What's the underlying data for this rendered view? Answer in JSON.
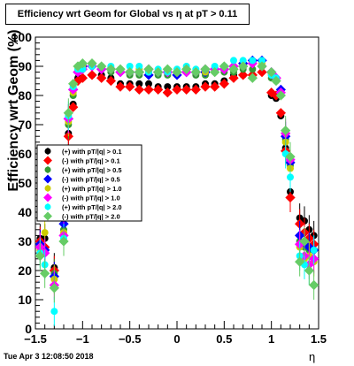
{
  "title": "Efficiency wrt Geom for Global vs   η at pT > 0.11",
  "footer": "Tue Apr  3 12:08:50 2018",
  "chart_data": {
    "type": "scatter",
    "xlabel": "η",
    "ylabel": "Efficiency wrt Geom (%)",
    "xlim": [
      -1.5,
      1.5
    ],
    "ylim": [
      0,
      100
    ],
    "x_ticks": [
      "−1.5",
      "−1",
      "−0.5",
      "0",
      "0.5",
      "1",
      "1.5"
    ],
    "y_ticks": [
      "0",
      "10",
      "20",
      "30",
      "40",
      "50",
      "60",
      "70",
      "80",
      "90",
      "100"
    ],
    "legend_position": "middle-left",
    "series": [
      {
        "name": "(+) with pT/|q| > 0.1",
        "color": "#000000",
        "x": [
          -1.45,
          -1.4,
          -1.3,
          -1.2,
          -1.15,
          -1.1,
          -1.05,
          -1.0,
          -0.9,
          -0.8,
          -0.7,
          -0.6,
          -0.5,
          -0.4,
          -0.3,
          -0.2,
          -0.1,
          0.0,
          0.1,
          0.2,
          0.3,
          0.4,
          0.5,
          0.6,
          0.7,
          0.8,
          0.9,
          1.0,
          1.05,
          1.1,
          1.15,
          1.2,
          1.3,
          1.35,
          1.4,
          1.45
        ],
        "y": [
          31,
          31,
          21,
          38,
          67,
          77,
          86,
          86,
          87,
          87,
          86,
          84,
          84,
          84,
          84,
          83,
          83,
          83,
          83,
          83,
          84,
          84,
          85,
          87,
          87,
          87,
          88,
          80,
          79,
          73,
          62,
          47,
          38,
          37,
          34,
          32
        ]
      },
      {
        "name": "(-) with pT/|q| > 0.1",
        "color": "#ff0000",
        "x": [
          -1.45,
          -1.4,
          -1.3,
          -1.2,
          -1.15,
          -1.1,
          -1.05,
          -1.0,
          -0.9,
          -0.8,
          -0.7,
          -0.6,
          -0.5,
          -0.4,
          -0.3,
          -0.2,
          -0.1,
          0.0,
          0.1,
          0.2,
          0.3,
          0.4,
          0.5,
          0.6,
          0.7,
          0.8,
          0.9,
          1.0,
          1.05,
          1.1,
          1.15,
          1.2,
          1.3,
          1.35,
          1.4,
          1.45
        ],
        "y": [
          30,
          28,
          20,
          38,
          66,
          76,
          85,
          86,
          87,
          86,
          85,
          83,
          83,
          82,
          82,
          82,
          81,
          82,
          82,
          82,
          83,
          83,
          84,
          86,
          87,
          87,
          88,
          81,
          80,
          74,
          61,
          45,
          36,
          33,
          31,
          29
        ]
      },
      {
        "name": "(+) with pT/|q| > 0.5",
        "color": "#339933",
        "x": [
          -1.45,
          -1.4,
          -1.3,
          -1.2,
          -1.15,
          -1.1,
          -1.05,
          -1.0,
          -0.9,
          -0.8,
          -0.7,
          -0.6,
          -0.5,
          -0.4,
          -0.3,
          -0.2,
          -0.1,
          0.0,
          0.1,
          0.2,
          0.3,
          0.4,
          0.5,
          0.6,
          0.7,
          0.8,
          0.9,
          1.0,
          1.05,
          1.1,
          1.15,
          1.2,
          1.3,
          1.35,
          1.4,
          1.45
        ],
        "y": [
          28,
          26,
          19,
          34,
          70,
          80,
          88,
          89,
          90,
          89,
          88,
          88,
          87,
          87,
          88,
          87,
          87,
          87,
          88,
          87,
          87,
          88,
          88,
          88,
          89,
          89,
          90,
          86,
          85,
          80,
          65,
          56,
          30,
          28,
          27,
          27
        ]
      },
      {
        "name": "(-) with pT/|q| > 0.5",
        "color": "#0000ff",
        "x": [
          -1.45,
          -1.4,
          -1.3,
          -1.2,
          -1.15,
          -1.1,
          -1.05,
          -1.0,
          -0.9,
          -0.8,
          -0.7,
          -0.6,
          -0.5,
          -0.4,
          -0.3,
          -0.2,
          -0.1,
          0.0,
          0.1,
          0.2,
          0.3,
          0.4,
          0.5,
          0.6,
          0.7,
          0.8,
          0.9,
          1.0,
          1.05,
          1.1,
          1.15,
          1.2,
          1.3,
          1.35,
          1.4,
          1.45
        ],
        "y": [
          29,
          27,
          18,
          36,
          72,
          82,
          88,
          90,
          90,
          89,
          89,
          88,
          88,
          88,
          87,
          88,
          88,
          87,
          88,
          88,
          88,
          89,
          89,
          90,
          91,
          92,
          92,
          88,
          86,
          82,
          66,
          57,
          32,
          29,
          28,
          27
        ]
      },
      {
        "name": "(+) with pT/|q| > 1.0",
        "color": "#cccc00",
        "x": [
          -1.45,
          -1.4,
          -1.3,
          -1.2,
          -1.15,
          -1.1,
          -1.05,
          -1.0,
          -0.9,
          -0.8,
          -0.7,
          -0.6,
          -0.5,
          -0.4,
          -0.3,
          -0.2,
          -0.1,
          0.0,
          0.1,
          0.2,
          0.3,
          0.4,
          0.5,
          0.6,
          0.7,
          0.8,
          0.9,
          1.0,
          1.05,
          1.1,
          1.15,
          1.2,
          1.3,
          1.35,
          1.4,
          1.45
        ],
        "y": [
          27,
          33,
          17,
          33,
          71,
          81,
          89,
          90,
          91,
          90,
          89,
          89,
          88,
          89,
          88,
          88,
          88,
          88,
          89,
          88,
          88,
          89,
          89,
          90,
          90,
          91,
          91,
          87,
          85,
          81,
          64,
          55,
          28,
          24,
          25,
          23
        ]
      },
      {
        "name": "(-) with pT/|q| > 1.0",
        "color": "#ff00ff",
        "x": [
          -1.45,
          -1.4,
          -1.3,
          -1.2,
          -1.15,
          -1.1,
          -1.05,
          -1.0,
          -0.9,
          -0.8,
          -0.7,
          -0.6,
          -0.5,
          -0.4,
          -0.3,
          -0.2,
          -0.1,
          0.0,
          0.1,
          0.2,
          0.3,
          0.4,
          0.5,
          0.6,
          0.7,
          0.8,
          0.9,
          1.0,
          1.05,
          1.1,
          1.15,
          1.2,
          1.3,
          1.35,
          1.4,
          1.45
        ],
        "y": [
          28,
          26,
          15,
          32,
          72,
          82,
          88,
          89,
          90,
          89,
          89,
          88,
          88,
          88,
          89,
          88,
          88,
          88,
          88,
          88,
          89,
          89,
          89,
          90,
          90,
          91,
          90,
          88,
          86,
          81,
          67,
          58,
          29,
          25,
          22,
          24
        ]
      },
      {
        "name": "(+) with pT/|q| > 2.0",
        "color": "#00ffff",
        "x": [
          -1.45,
          -1.4,
          -1.3,
          -1.2,
          -1.15,
          -1.1,
          -1.05,
          -1.0,
          -0.9,
          -0.8,
          -0.7,
          -0.6,
          -0.5,
          -0.4,
          -0.3,
          -0.2,
          -0.1,
          0.0,
          0.1,
          0.2,
          0.3,
          0.4,
          0.5,
          0.6,
          0.7,
          0.8,
          0.9,
          1.0,
          1.05,
          1.1,
          1.15,
          1.2,
          1.3,
          1.35,
          1.4,
          1.45
        ],
        "y": [
          26,
          22,
          6,
          31,
          73,
          83,
          89,
          89,
          90,
          90,
          90,
          89,
          90,
          90,
          88,
          89,
          88,
          89,
          90,
          89,
          89,
          90,
          90,
          92,
          92,
          92,
          92,
          87,
          86,
          80,
          60,
          52,
          25,
          22,
          20,
          27
        ]
      },
      {
        "name": "(-) with pT/|q| > 2.0",
        "color": "#66cc66",
        "x": [
          -1.45,
          -1.4,
          -1.3,
          -1.2,
          -1.15,
          -1.1,
          -1.05,
          -1.0,
          -0.9,
          -0.8,
          -0.7,
          -0.6,
          -0.5,
          -0.4,
          -0.3,
          -0.2,
          -0.1,
          0.0,
          0.1,
          0.2,
          0.3,
          0.4,
          0.5,
          0.6,
          0.7,
          0.8,
          0.9,
          1.0,
          1.05,
          1.1,
          1.15,
          1.2,
          1.3,
          1.35,
          1.4,
          1.45
        ],
        "y": [
          25,
          19,
          14,
          30,
          74,
          84,
          90,
          91,
          91,
          90,
          89,
          89,
          88,
          88,
          89,
          88,
          89,
          88,
          89,
          88,
          89,
          88,
          90,
          89,
          90,
          86,
          90,
          88,
          85,
          80,
          68,
          59,
          23,
          30,
          20,
          15
        ]
      }
    ]
  }
}
